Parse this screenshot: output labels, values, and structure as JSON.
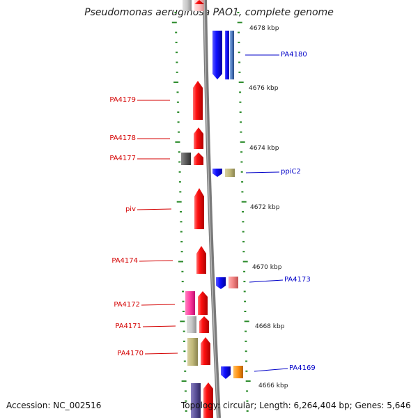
{
  "title": "Pseudomonas aeruginosa PAO1, complete genome",
  "accession": "Accession: NC_002516",
  "summary": "Topology: circular; Length: 6,264,404 bp; Genes: 5,646",
  "scale_labels": [
    "4678 kbp",
    "4676 kbp",
    "4674 kbp",
    "4672 kbp",
    "4670 kbp",
    "4668 kbp",
    "4666 kbp"
  ],
  "gene_labels": {
    "left": [
      "PA4179",
      "PA4178",
      "PA4177",
      "piv",
      "PA4174",
      "PA4172",
      "PA4171",
      "PA4170"
    ],
    "right": [
      "PA4180",
      "ppiC2",
      "PA4173",
      "PA4169"
    ]
  },
  "colors": {
    "left_label": "#d40000",
    "right_label": "#0000c8",
    "tick": "#2a8a2a",
    "backbone": "#7a7a7a"
  }
}
